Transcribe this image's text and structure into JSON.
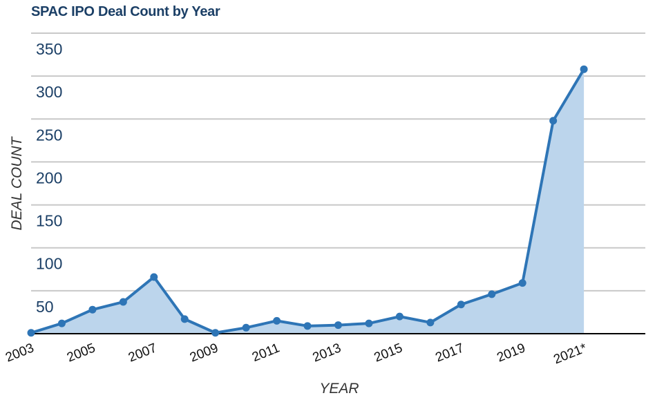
{
  "title": "SPAC IPO Deal Count by Year",
  "colors": {
    "title": "#1b3f66",
    "line": "#2e75b6",
    "fill": "#bcd5ec",
    "grid": "#c8c8c8",
    "axis": "#000000",
    "tick_text": "#1b3f66",
    "axis_title": "#333333"
  },
  "chart_data": {
    "type": "area",
    "title": "SPAC IPO Deal Count by Year",
    "xlabel": "YEAR",
    "ylabel": "DEAL COUNT",
    "x": [
      2003,
      2004,
      2005,
      2006,
      2007,
      2008,
      2009,
      2010,
      2011,
      2012,
      2013,
      2014,
      2015,
      2016,
      2017,
      2018,
      2019,
      2020,
      2021
    ],
    "values": [
      1,
      12,
      28,
      37,
      66,
      17,
      1,
      7,
      15,
      9,
      10,
      12,
      20,
      13,
      34,
      46,
      59,
      248,
      308
    ],
    "x_tick_labels": [
      "2003",
      "2005",
      "2007",
      "2009",
      "2011",
      "2013",
      "2015",
      "2017",
      "2019",
      "2021*"
    ],
    "x_tick_years": [
      2003,
      2005,
      2007,
      2009,
      2011,
      2013,
      2015,
      2017,
      2019,
      2021
    ],
    "y_ticks": [
      50,
      100,
      150,
      200,
      250,
      300,
      350
    ],
    "ylim": [
      0,
      350
    ],
    "xlim": [
      2003,
      2023
    ],
    "grid": true,
    "markers": true,
    "legend": false
  }
}
